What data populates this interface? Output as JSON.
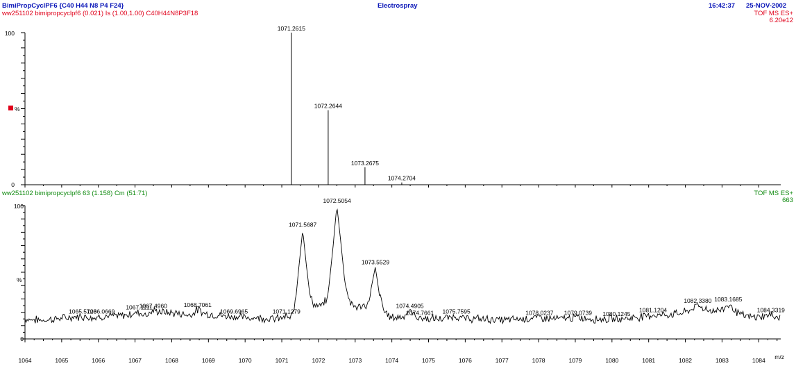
{
  "header": {
    "title": "BimiPropCyclPF6 {C40 H44 N8 P4 F24}",
    "center": "Electrospray",
    "time": "16:42:37",
    "date": "25-NOV-2002"
  },
  "top_panel": {
    "subtitle": "ww251102 bimipropcyclpf6  (0.021) Is (1.00,1.00) C40H44N8P3F18",
    "mode": "TOF MS ES+",
    "intensity": "6.20e12",
    "y_top_label": "100",
    "y_mid_label": "%",
    "y_zero_label": "0"
  },
  "bottom_panel": {
    "subtitle": "ww251102 bimipropcyclpf6 63 (1.158) Cm (51:71)",
    "mode": "TOF MS ES+",
    "intensity": "663",
    "y_top_label": "100",
    "y_mid_label": "%",
    "y_zero_label": "0",
    "x_unit": "m/z"
  },
  "colors": {
    "blue": "#0a16b8",
    "red": "#e0001a",
    "green": "#108a10"
  },
  "chart_data": [
    {
      "type": "bar",
      "title": "BimiPropCyclPF6 {C40 H44 N8 P4 F24}",
      "subtitle": "ww251102 bimipropcyclpf6  (0.021) Is (1.00,1.00) C40H44N8P3F18",
      "xlim": [
        1064,
        1084.6
      ],
      "ylim": [
        0,
        100
      ],
      "ylabel": "%",
      "peaks": [
        {
          "mz": 1071.2615,
          "rel": 100,
          "label": "1071.2615"
        },
        {
          "mz": 1072.2644,
          "rel": 49,
          "label": "1072.2644"
        },
        {
          "mz": 1073.2675,
          "rel": 11.5,
          "label": "1073.2675"
        },
        {
          "mz": 1074.2704,
          "rel": 1.5,
          "label": "1074.2704"
        }
      ]
    },
    {
      "type": "line",
      "title": "",
      "subtitle": "ww251102 bimipropcyclpf6 63 (1.158) Cm (51:71)",
      "xlabel": "m/z",
      "ylabel": "%",
      "xlim": [
        1064,
        1084.6
      ],
      "ylim": [
        0,
        100
      ],
      "x_ticks": [
        "1064",
        "1065",
        "1066",
        "1067",
        "1068",
        "1069",
        "1070",
        "1071",
        "1072",
        "1073",
        "1074",
        "1075",
        "1076",
        "1077",
        "1078",
        "1079",
        "1080",
        "1081",
        "1082",
        "1083",
        "1084"
      ],
      "anchors": [
        [
          1064.0,
          15
        ],
        [
          1064.4,
          14
        ],
        [
          1064.8,
          15
        ],
        [
          1065.2,
          16
        ],
        [
          1065.57,
          17
        ],
        [
          1065.9,
          16
        ],
        [
          1066.07,
          17
        ],
        [
          1066.5,
          17
        ],
        [
          1066.8,
          18
        ],
        [
          1067.11,
          20
        ],
        [
          1067.3,
          18
        ],
        [
          1067.5,
          21
        ],
        [
          1067.8,
          20
        ],
        [
          1068.2,
          19
        ],
        [
          1068.5,
          18
        ],
        [
          1068.71,
          22
        ],
        [
          1068.9,
          19
        ],
        [
          1069.2,
          18
        ],
        [
          1069.5,
          17
        ],
        [
          1069.7,
          17
        ],
        [
          1070.0,
          16
        ],
        [
          1070.4,
          16
        ],
        [
          1070.8,
          15
        ],
        [
          1071.05,
          16
        ],
        [
          1071.13,
          17
        ],
        [
          1071.22,
          15
        ],
        [
          1071.3,
          18
        ],
        [
          1071.38,
          30
        ],
        [
          1071.47,
          55
        ],
        [
          1071.57,
          82
        ],
        [
          1071.67,
          55
        ],
        [
          1071.77,
          32
        ],
        [
          1071.9,
          25
        ],
        [
          1072.05,
          24
        ],
        [
          1072.25,
          30
        ],
        [
          1072.4,
          70
        ],
        [
          1072.5,
          100
        ],
        [
          1072.6,
          75
        ],
        [
          1072.72,
          42
        ],
        [
          1072.85,
          28
        ],
        [
          1073.0,
          24
        ],
        [
          1073.2,
          24
        ],
        [
          1073.35,
          26
        ],
        [
          1073.45,
          40
        ],
        [
          1073.55,
          54
        ],
        [
          1073.65,
          35
        ],
        [
          1073.8,
          20
        ],
        [
          1074.0,
          16
        ],
        [
          1074.3,
          17
        ],
        [
          1074.49,
          21
        ],
        [
          1074.7,
          16
        ],
        [
          1075.0,
          15
        ],
        [
          1075.4,
          15
        ],
        [
          1075.76,
          17
        ],
        [
          1076.0,
          15
        ],
        [
          1076.5,
          15
        ],
        [
          1077.0,
          14
        ],
        [
          1077.5,
          15
        ],
        [
          1078.02,
          16
        ],
        [
          1078.5,
          15
        ],
        [
          1079.07,
          16
        ],
        [
          1079.5,
          15
        ],
        [
          1080.12,
          15
        ],
        [
          1080.6,
          16
        ],
        [
          1081.12,
          18
        ],
        [
          1081.5,
          18
        ],
        [
          1082.0,
          20
        ],
        [
          1082.34,
          25
        ],
        [
          1082.7,
          21
        ],
        [
          1083.0,
          22
        ],
        [
          1083.17,
          26
        ],
        [
          1083.5,
          18
        ],
        [
          1083.8,
          16
        ],
        [
          1084.1,
          17
        ],
        [
          1084.33,
          18
        ],
        [
          1084.6,
          16
        ]
      ],
      "annotations": [
        {
          "mz": 1065.5723,
          "rel": 17,
          "label": "1065.5723"
        },
        {
          "mz": 1066.0669,
          "rel": 17,
          "label": "1066.0669"
        },
        {
          "mz": 1067.1111,
          "rel": 20,
          "label": "1067.1111"
        },
        {
          "mz": 1067.496,
          "rel": 21,
          "label": "1067.4960"
        },
        {
          "mz": 1068.7061,
          "rel": 22,
          "label": "1068.7061"
        },
        {
          "mz": 1069.6965,
          "rel": 17,
          "label": "1069.6965"
        },
        {
          "mz": 1071.1279,
          "rel": 17,
          "label": "1071.1279"
        },
        {
          "mz": 1071.5687,
          "rel": 82,
          "label": "1071.5687"
        },
        {
          "mz": 1072.5054,
          "rel": 100,
          "label": "1072.5054"
        },
        {
          "mz": 1073.5529,
          "rel": 54,
          "label": "1073.5529"
        },
        {
          "mz": 1074.4905,
          "rel": 21,
          "label": "1074.4905"
        },
        {
          "mz": 1074.7661,
          "rel": 16,
          "label": "1074.7661"
        },
        {
          "mz": 1075.7595,
          "rel": 17,
          "label": "1075.7595"
        },
        {
          "mz": 1078.0237,
          "rel": 16,
          "label": "1078.0237"
        },
        {
          "mz": 1079.0739,
          "rel": 16,
          "label": "1079.0739"
        },
        {
          "mz": 1080.1245,
          "rel": 15,
          "label": "1080.1245"
        },
        {
          "mz": 1081.1204,
          "rel": 18,
          "label": "1081.1204"
        },
        {
          "mz": 1082.338,
          "rel": 25,
          "label": "1082.3380"
        },
        {
          "mz": 1083.1685,
          "rel": 26,
          "label": "1083.1685"
        },
        {
          "mz": 1084.3319,
          "rel": 18,
          "label": "1084.3319"
        }
      ]
    }
  ]
}
